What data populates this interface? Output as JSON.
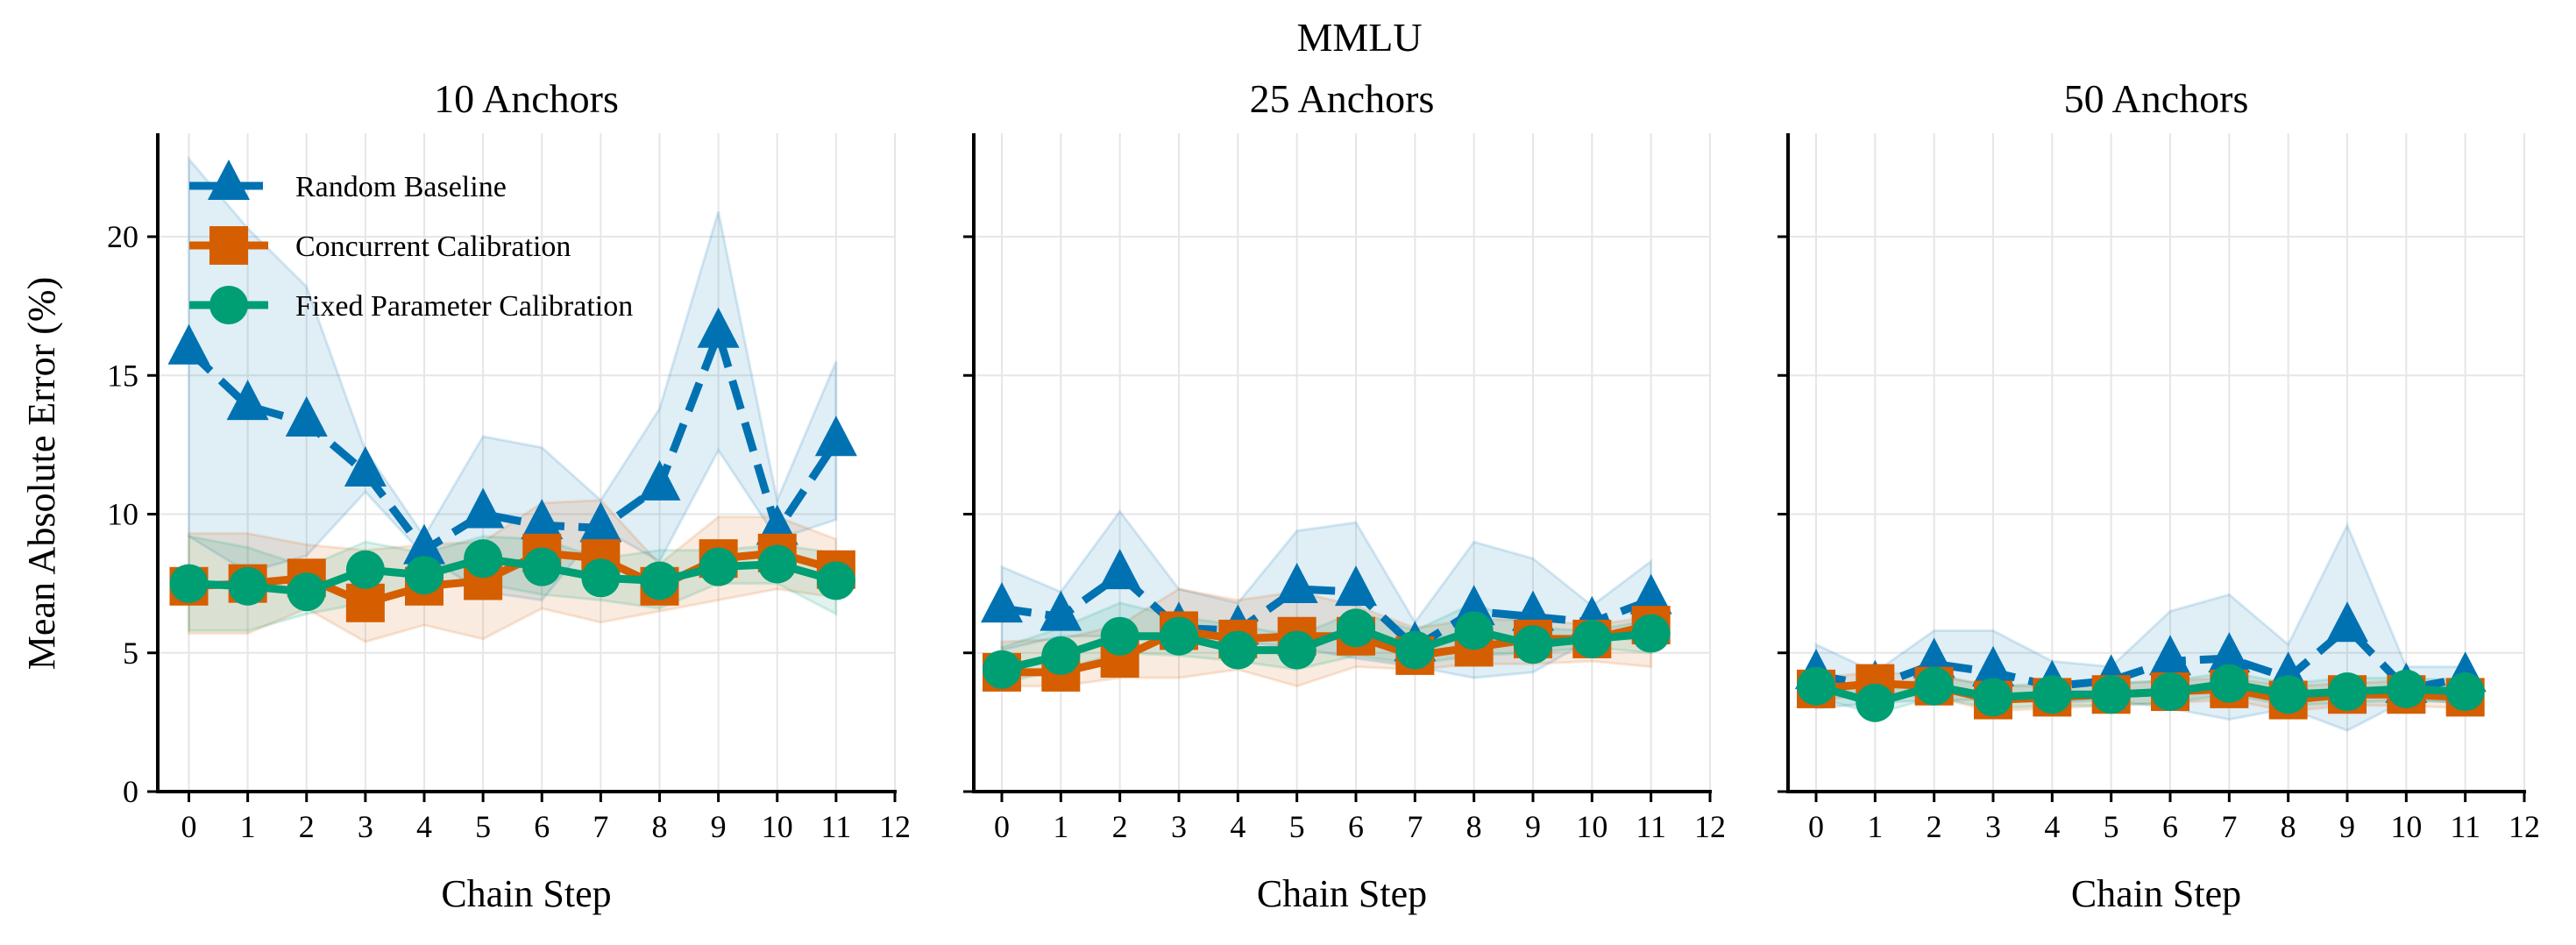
{
  "chart_data": {
    "type": "line",
    "suptitle": "MMLU",
    "legend_placement": "upper-left",
    "grid": true,
    "colors": {
      "Random Baseline": "#0072b2",
      "Concurrent Calibration": "#d55e00",
      "Fixed Parameter Calibration": "#009e73"
    },
    "series_styles": {
      "Random Baseline": {
        "marker": "triangle",
        "dash": true
      },
      "Concurrent Calibration": {
        "marker": "square",
        "dash": false
      },
      "Fixed Parameter Calibration": {
        "marker": "circle",
        "dash": false
      }
    },
    "legend": [
      "Random Baseline",
      "Concurrent Calibration",
      "Fixed Parameter Calibration"
    ],
    "xlabel": "Chain Step",
    "ylabel": "Mean Absolute Error (%)",
    "xticks": [
      0,
      1,
      2,
      3,
      4,
      5,
      6,
      7,
      8,
      9,
      10,
      11,
      12
    ],
    "yticks": [
      0,
      5,
      10,
      15,
      20
    ],
    "xlim": [
      -0.6,
      12
    ],
    "ylim": [
      0,
      23.5
    ],
    "x": [
      0,
      1,
      2,
      3,
      4,
      5,
      6,
      7,
      8,
      9,
      10,
      11
    ],
    "panels": [
      {
        "title": "10 Anchors",
        "series": [
          {
            "name": "Random Baseline",
            "values": [
              15.9,
              13.9,
              13.3,
              11.5,
              8.7,
              10.0,
              9.6,
              9.5,
              11.0,
              16.5,
              9.4,
              12.6
            ],
            "upper": [
              22.8,
              20.3,
              18.2,
              12.3,
              9.2,
              12.8,
              12.4,
              10.5,
              13.8,
              20.9,
              10.5,
              15.5
            ],
            "lower": [
              9.2,
              7.9,
              8.5,
              10.8,
              8.5,
              7.2,
              6.9,
              9.5,
              8.3,
              12.3,
              9.1,
              9.8
            ]
          },
          {
            "name": "Concurrent Calibration",
            "values": [
              7.4,
              7.5,
              7.7,
              6.8,
              7.4,
              7.6,
              8.6,
              8.4,
              7.4,
              8.4,
              8.6,
              8.0
            ],
            "upper": [
              9.3,
              9.3,
              8.9,
              8.7,
              8.9,
              9.0,
              10.4,
              10.5,
              8.2,
              9.9,
              9.9,
              9.1
            ],
            "lower": [
              5.7,
              5.7,
              6.6,
              5.4,
              6.0,
              5.5,
              6.6,
              6.1,
              6.5,
              6.9,
              7.3,
              7.0
            ]
          },
          {
            "name": "Fixed Parameter Calibration",
            "values": [
              7.5,
              7.4,
              7.2,
              8.0,
              7.8,
              8.4,
              8.1,
              7.7,
              7.6,
              8.1,
              8.2,
              7.6
            ],
            "upper": [
              9.2,
              8.8,
              8.1,
              9.0,
              8.6,
              9.2,
              9.1,
              8.4,
              8.7,
              8.7,
              8.9,
              8.6
            ],
            "lower": [
              5.8,
              5.8,
              6.4,
              6.8,
              7.4,
              7.5,
              7.1,
              6.9,
              6.6,
              7.5,
              7.5,
              6.4
            ]
          }
        ]
      },
      {
        "title": "25 Anchors",
        "series": [
          {
            "name": "Random Baseline",
            "values": [
              6.6,
              6.3,
              7.8,
              5.9,
              5.8,
              7.3,
              7.2,
              5.2,
              6.5,
              6.3,
              6.1,
              6.9
            ],
            "upper": [
              8.1,
              7.2,
              10.1,
              7.3,
              6.8,
              9.4,
              9.7,
              6.1,
              9.0,
              8.4,
              6.7,
              8.3
            ],
            "lower": [
              5.1,
              5.6,
              5.6,
              5.7,
              5.4,
              5.2,
              4.8,
              4.5,
              4.1,
              4.3,
              5.5,
              5.5
            ]
          },
          {
            "name": "Concurrent Calibration",
            "values": [
              4.3,
              4.3,
              4.8,
              5.8,
              5.5,
              5.6,
              5.6,
              4.9,
              5.2,
              5.5,
              5.5,
              6.0
            ],
            "upper": [
              5.4,
              5.5,
              6.0,
              7.3,
              6.9,
              7.2,
              6.7,
              5.9,
              6.2,
              6.2,
              6.0,
              6.3
            ],
            "lower": [
              3.8,
              3.8,
              4.1,
              4.1,
              4.4,
              3.8,
              4.5,
              4.4,
              4.6,
              4.6,
              4.7,
              4.5
            ]
          },
          {
            "name": "Fixed Parameter Calibration",
            "values": [
              4.4,
              4.9,
              5.6,
              5.6,
              5.1,
              5.1,
              5.9,
              5.1,
              5.8,
              5.3,
              5.5,
              5.7
            ],
            "upper": [
              5.2,
              5.9,
              6.8,
              6.3,
              6.0,
              5.6,
              6.5,
              5.8,
              6.8,
              5.9,
              5.8,
              6.2
            ],
            "lower": [
              3.9,
              4.4,
              5.0,
              4.9,
              4.7,
              4.4,
              4.9,
              4.6,
              4.9,
              5.0,
              5.2,
              5.0
            ]
          }
        ]
      },
      {
        "title": "50 Anchors",
        "series": [
          {
            "name": "Random Baseline",
            "values": [
              4.2,
              3.8,
              4.6,
              4.3,
              3.8,
              4.0,
              4.7,
              4.8,
              4.1,
              5.9,
              3.7,
              4.1
            ],
            "upper": [
              5.3,
              4.3,
              5.8,
              5.8,
              4.7,
              4.5,
              6.5,
              7.1,
              5.3,
              9.6,
              4.5,
              4.5
            ],
            "lower": [
              3.0,
              3.2,
              3.3,
              3.3,
              3.2,
              3.3,
              3.0,
              2.6,
              3.0,
              2.2,
              3.3,
              3.2
            ]
          },
          {
            "name": "Concurrent Calibration",
            "values": [
              3.7,
              3.9,
              3.8,
              3.3,
              3.4,
              3.5,
              3.6,
              3.7,
              3.3,
              3.5,
              3.5,
              3.4
            ],
            "upper": [
              4.1,
              4.3,
              4.2,
              3.8,
              3.8,
              3.9,
              4.0,
              4.1,
              3.8,
              3.9,
              4.0,
              3.8
            ],
            "lower": [
              3.3,
              3.5,
              3.4,
              2.9,
              3.0,
              3.1,
              3.2,
              3.3,
              2.9,
              3.1,
              3.1,
              3.0
            ]
          },
          {
            "name": "Fixed Parameter Calibration",
            "values": [
              3.8,
              3.2,
              3.8,
              3.4,
              3.5,
              3.5,
              3.6,
              3.9,
              3.5,
              3.6,
              3.7,
              3.6
            ],
            "upper": [
              4.2,
              3.6,
              4.2,
              3.8,
              3.9,
              3.9,
              4.0,
              4.3,
              3.9,
              4.1,
              4.1,
              4.0
            ],
            "lower": [
              3.4,
              2.8,
              3.4,
              3.0,
              3.1,
              3.1,
              3.2,
              3.5,
              3.1,
              3.2,
              3.3,
              3.2
            ]
          }
        ]
      }
    ]
  }
}
